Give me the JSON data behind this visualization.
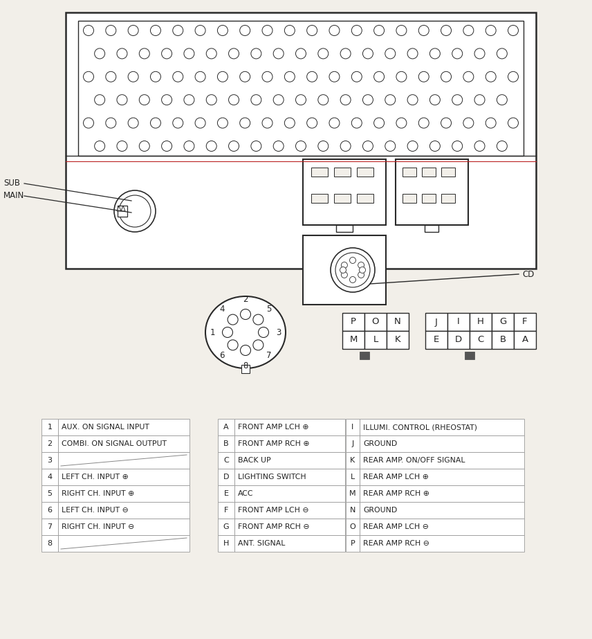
{
  "bg_color": "#f2efe9",
  "line_color": "#2a2a2a",
  "table1": {
    "rows": [
      [
        "1",
        "AUX. ON SIGNAL INPUT"
      ],
      [
        "2",
        "COMBI. ON SIGNAL OUTPUT"
      ],
      [
        "3",
        ""
      ],
      [
        "4",
        "LEFT CH. INPUT ⊕"
      ],
      [
        "5",
        "RIGHT CH. INPUT ⊕"
      ],
      [
        "6",
        "LEFT CH. INPUT ⊖"
      ],
      [
        "7",
        "RIGHT CH. INPUT ⊖"
      ],
      [
        "8",
        ""
      ]
    ]
  },
  "table2": {
    "rows": [
      [
        "A",
        "FRONT AMP LCH ⊕"
      ],
      [
        "B",
        "FRONT AMP RCH ⊕"
      ],
      [
        "C",
        "BACK UP"
      ],
      [
        "D",
        "LIGHTING SWITCH"
      ],
      [
        "E",
        "ACC"
      ],
      [
        "F",
        "FRONT AMP LCH ⊖"
      ],
      [
        "G",
        "FRONT AMP RCH ⊖"
      ],
      [
        "H",
        "ANT. SIGNAL"
      ]
    ]
  },
  "table3": {
    "rows": [
      [
        "I",
        "ILLUMI. CONTROL (RHEOSTAT)"
      ],
      [
        "J",
        "GROUND"
      ],
      [
        "K",
        "REAR AMP. ON/OFF SIGNAL"
      ],
      [
        "L",
        "REAR AMP LCH ⊕"
      ],
      [
        "M",
        "REAR AMP RCH ⊕"
      ],
      [
        "N",
        "GROUND"
      ],
      [
        "O",
        "REAR AMP LCH ⊖"
      ],
      [
        "P",
        "REAR AMP RCH ⊖"
      ]
    ]
  },
  "grid1_letters": [
    [
      "P",
      "O",
      "N"
    ],
    [
      "M",
      "L",
      "K"
    ]
  ],
  "grid2_letters": [
    [
      "J",
      "I",
      "H",
      "G",
      "F"
    ],
    [
      "E",
      "D",
      "C",
      "B",
      "A"
    ]
  ]
}
